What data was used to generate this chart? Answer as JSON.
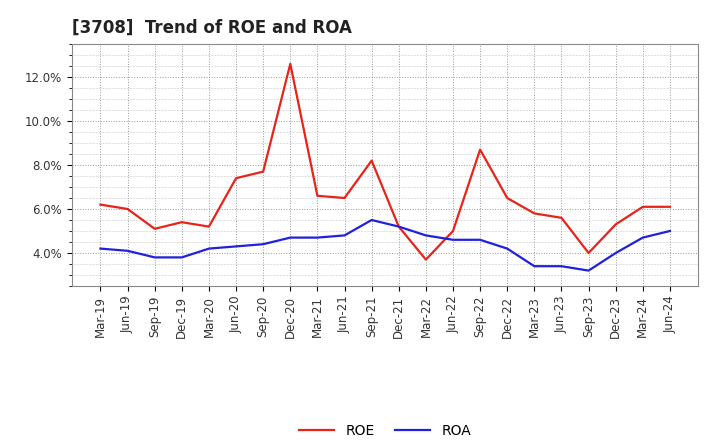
{
  "title": "[3708]  Trend of ROE and ROA",
  "labels": [
    "Mar-19",
    "Jun-19",
    "Sep-19",
    "Dec-19",
    "Mar-20",
    "Jun-20",
    "Sep-20",
    "Dec-20",
    "Mar-21",
    "Jun-21",
    "Sep-21",
    "Dec-21",
    "Mar-22",
    "Jun-22",
    "Sep-22",
    "Dec-22",
    "Mar-23",
    "Jun-23",
    "Sep-23",
    "Dec-23",
    "Mar-24",
    "Jun-24"
  ],
  "ROE": [
    6.2,
    6.0,
    5.1,
    5.4,
    5.2,
    7.4,
    7.7,
    12.6,
    6.6,
    6.5,
    8.2,
    5.2,
    3.7,
    5.0,
    8.7,
    6.5,
    5.8,
    5.6,
    4.0,
    5.3,
    6.1,
    6.1
  ],
  "ROA": [
    4.2,
    4.1,
    3.8,
    3.8,
    4.2,
    4.3,
    4.4,
    4.7,
    4.7,
    4.8,
    5.5,
    5.2,
    4.8,
    4.6,
    4.6,
    4.2,
    3.4,
    3.4,
    3.2,
    4.0,
    4.7,
    5.0
  ],
  "ROE_color": "#e8231a",
  "ROA_color": "#2020dd",
  "background_color": "#ffffff",
  "plot_bg_color": "#ffffff",
  "grid_color": "#999999",
  "ylim": [
    2.5,
    13.5
  ],
  "yticks": [
    4.0,
    6.0,
    8.0,
    10.0,
    12.0
  ],
  "ytick_labels": [
    "4.0%",
    "6.0%",
    "8.0%",
    "10.0%",
    "12.0%"
  ],
  "title_fontsize": 12,
  "legend_fontsize": 10,
  "tick_fontsize": 8.5,
  "linewidth": 1.6
}
